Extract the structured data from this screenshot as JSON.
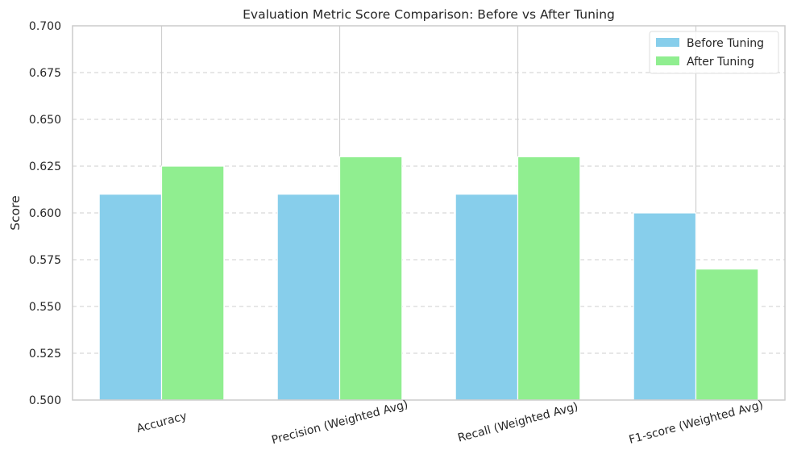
{
  "chart_data": {
    "type": "bar",
    "title": "Evaluation Metric Score Comparison: Before vs After Tuning",
    "xlabel": "",
    "ylabel": "Score",
    "categories": [
      "Accuracy",
      "Precision (Weighted Avg)",
      "Recall (Weighted Avg)",
      "F1-score (Weighted Avg)"
    ],
    "series": [
      {
        "name": "Before Tuning",
        "color": "#87ceeb",
        "values": [
          0.61,
          0.61,
          0.61,
          0.6
        ]
      },
      {
        "name": "After Tuning",
        "color": "#90ee90",
        "values": [
          0.625,
          0.63,
          0.63,
          0.57
        ]
      }
    ],
    "ylim": [
      0.5,
      0.7
    ],
    "yticks": [
      "0.500",
      "0.525",
      "0.550",
      "0.575",
      "0.600",
      "0.625",
      "0.650",
      "0.675",
      "0.700"
    ],
    "grid": true,
    "legend_position": "top-right",
    "xtick_rotation_deg": 15
  }
}
